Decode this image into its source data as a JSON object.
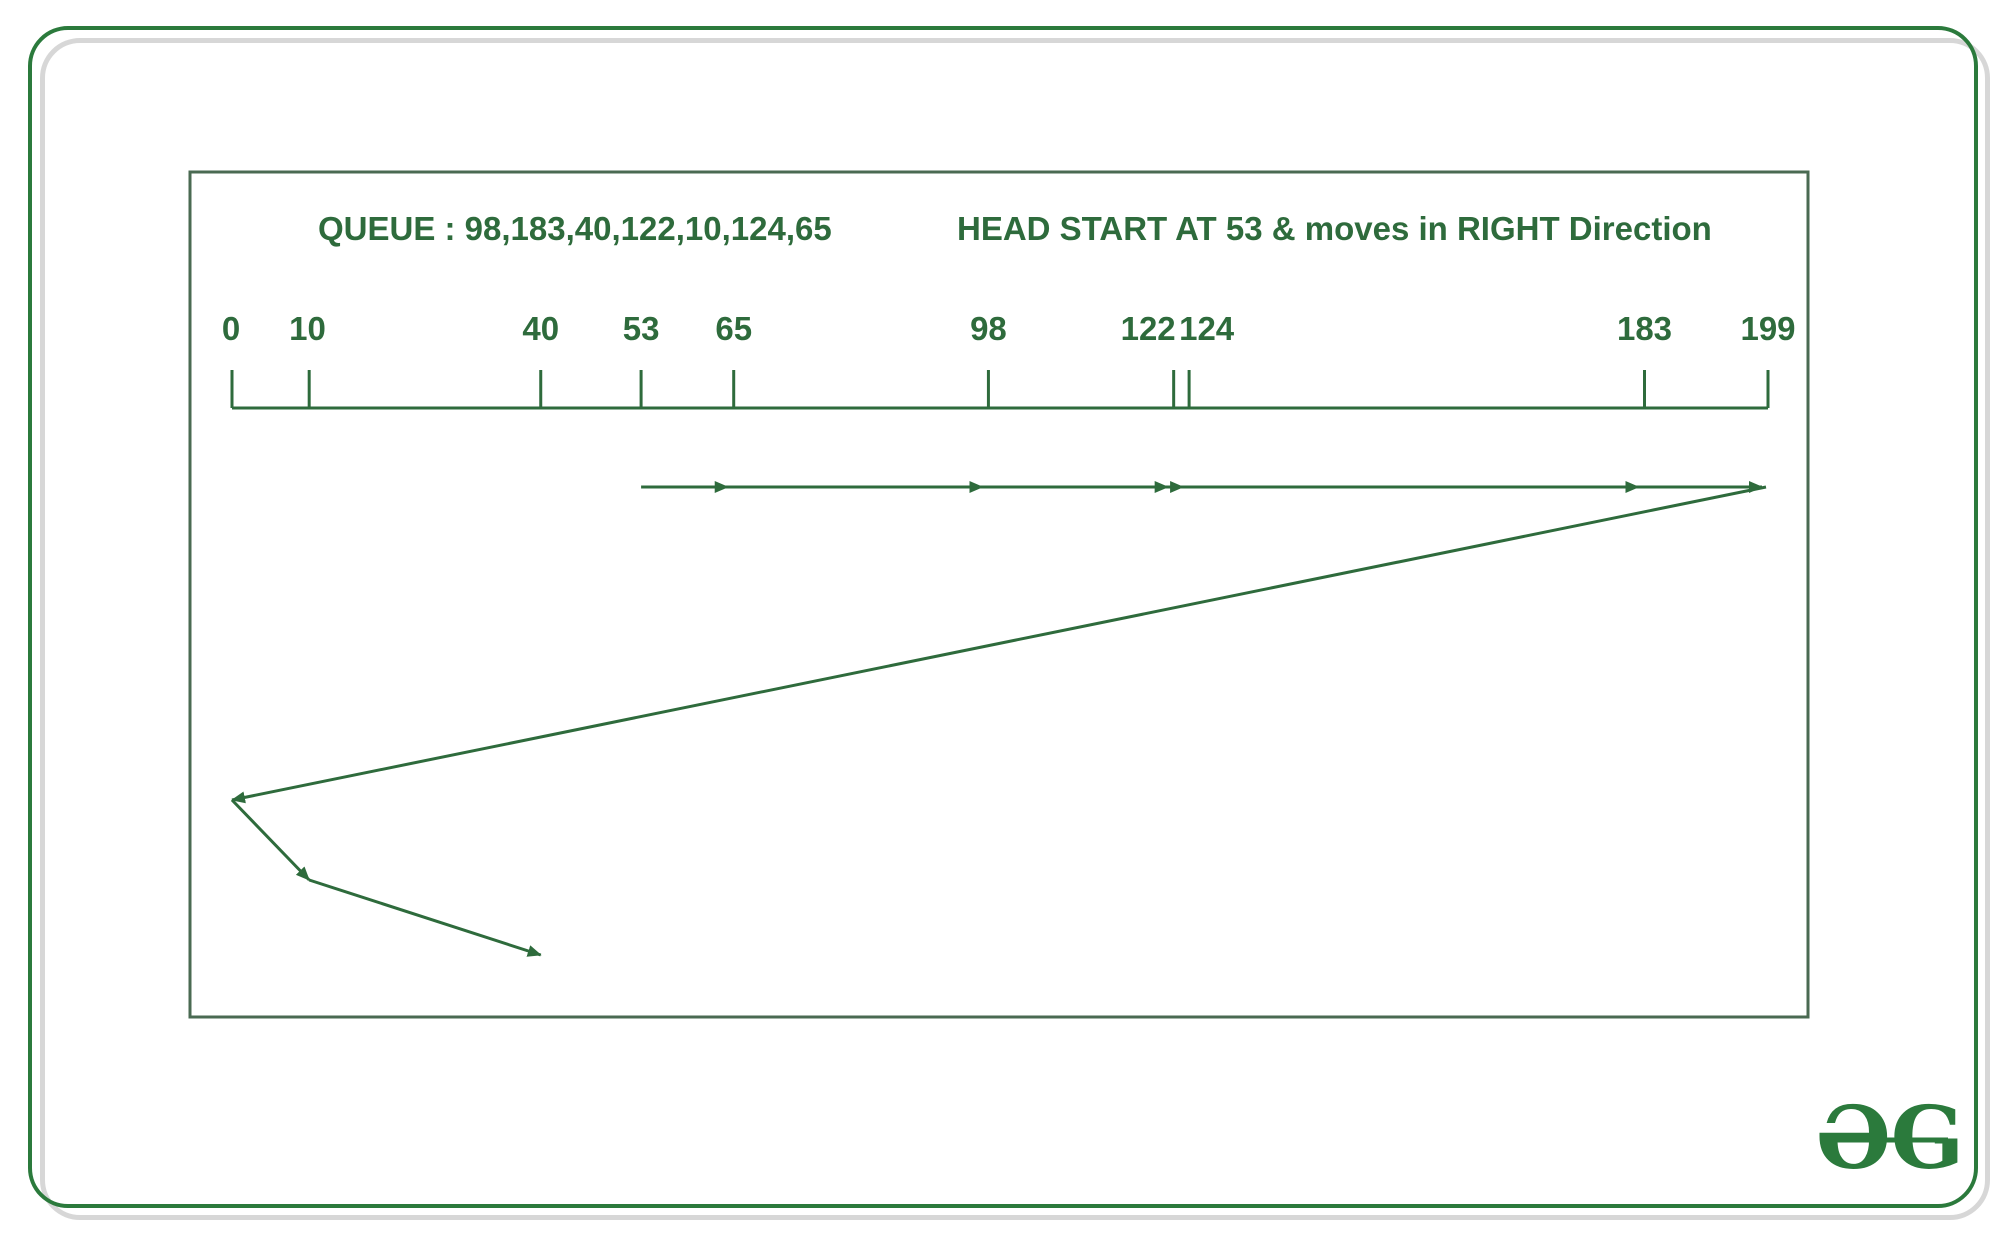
{
  "queue_text": "QUEUE : 98,183,40,122,10,124,65",
  "head_text": "HEAD START AT 53 & moves in RIGHT Direction",
  "axis": {
    "min": 0,
    "max": 199,
    "tick_labels": [
      "0",
      "10",
      "40",
      "53",
      "65",
      "98",
      "122",
      "124",
      "183",
      "199"
    ],
    "tick_values": [
      0,
      10,
      40,
      53,
      65,
      98,
      122,
      124,
      183,
      199
    ]
  },
  "head_path": {
    "start": 53,
    "direction": "right",
    "right_sweep": [
      53,
      65,
      98,
      122,
      124,
      183,
      199
    ],
    "return_sweep": [
      199,
      0,
      10,
      40
    ]
  },
  "colors": {
    "primary": "#2e6b3c",
    "border": "#2b7a3c",
    "shadow": "#d7d7d7"
  },
  "logo": {
    "icon": "geeksforgeeks-logo-icon",
    "text": "ƏG"
  }
}
